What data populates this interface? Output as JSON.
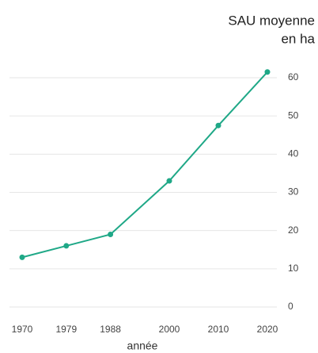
{
  "chart_data": {
    "type": "line",
    "title_lines": [
      "SAU moyenne",
      "en ha"
    ],
    "x_label": "année",
    "x": [
      1970,
      1979,
      1988,
      2000,
      2010,
      2020
    ],
    "series": [
      {
        "name": "SAU moyenne",
        "color": "#1fa887",
        "values": [
          13,
          16,
          19,
          33,
          47.5,
          61.5
        ]
      }
    ],
    "xlim": [
      1970,
      2020
    ],
    "xticks": [
      1970,
      1979,
      1988,
      2000,
      2010,
      2020
    ],
    "ylim": [
      0,
      60
    ],
    "yticks": [
      0,
      10,
      20,
      30,
      40,
      50,
      60
    ],
    "grid": true,
    "y_axis_side": "right"
  }
}
